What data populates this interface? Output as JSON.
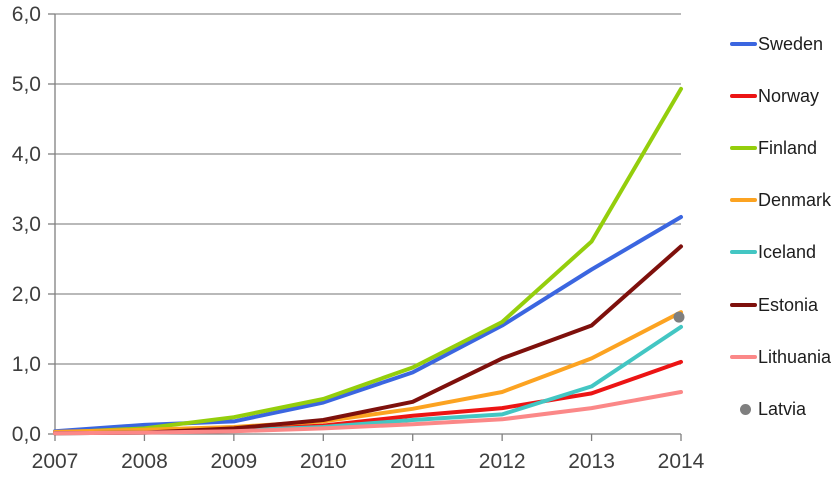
{
  "chart_data": {
    "type": "line",
    "title": "",
    "xlabel": "",
    "ylabel": "",
    "x": [
      2007,
      2008,
      2009,
      2010,
      2011,
      2012,
      2013,
      2014
    ],
    "x_tick_labels": [
      "2007",
      "2008",
      "2009",
      "2010",
      "2011",
      "2012",
      "2013",
      "2014"
    ],
    "y_axis": {
      "min": 0,
      "max": 6,
      "step": 1,
      "tick_labels": [
        "0,0",
        "1,0",
        "2,0",
        "3,0",
        "4,0",
        "5,0",
        "6,0"
      ]
    },
    "decimal_separator": "comma",
    "grid": true,
    "legend_position": "right",
    "series": [
      {
        "name": "Sweden",
        "color": "#3B66E0",
        "values": [
          0.04,
          0.13,
          0.18,
          0.45,
          0.88,
          1.55,
          2.35,
          3.1
        ]
      },
      {
        "name": "Norway",
        "color": "#EC1414",
        "values": [
          0.02,
          0.03,
          0.07,
          0.12,
          0.26,
          0.37,
          0.58,
          1.03
        ]
      },
      {
        "name": "Finland",
        "color": "#94CE0C",
        "values": [
          0.02,
          0.08,
          0.24,
          0.5,
          0.95,
          1.6,
          2.75,
          4.93
        ]
      },
      {
        "name": "Denmark",
        "color": "#FCA321",
        "values": [
          0.03,
          0.06,
          0.1,
          0.18,
          0.36,
          0.6,
          1.08,
          1.74
        ]
      },
      {
        "name": "Iceland",
        "color": "#43C6C3",
        "values": [
          0.01,
          0.02,
          0.05,
          0.1,
          0.2,
          0.28,
          0.68,
          1.53
        ]
      },
      {
        "name": "Estonia",
        "color": "#7E100C",
        "values": [
          0.01,
          0.02,
          0.08,
          0.2,
          0.46,
          1.08,
          1.55,
          2.68
        ]
      },
      {
        "name": "Lithuania",
        "color": "#FB8888",
        "values": [
          0.01,
          0.02,
          0.04,
          0.08,
          0.14,
          0.21,
          0.37,
          0.6
        ]
      }
    ],
    "point_series": [
      {
        "name": "Latvia",
        "color": "#7F7F7F",
        "marker": "circle",
        "x": 2014,
        "value": 1.67
      }
    ]
  },
  "legend": {
    "items": [
      {
        "label": "Sweden",
        "marker": "line",
        "color": "#3B66E0"
      },
      {
        "label": "Norway",
        "marker": "line",
        "color": "#EC1414"
      },
      {
        "label": "Finland",
        "marker": "line",
        "color": "#94CE0C"
      },
      {
        "label": "Denmark",
        "marker": "line",
        "color": "#FCA321"
      },
      {
        "label": "Iceland",
        "marker": "line",
        "color": "#43C6C3"
      },
      {
        "label": "Estonia",
        "marker": "line",
        "color": "#7E100C"
      },
      {
        "label": "Lithuania",
        "marker": "line",
        "color": "#FB8888"
      },
      {
        "label": "Latvia",
        "marker": "circle",
        "color": "#7F7F7F"
      }
    ]
  },
  "styles": {
    "background": "#FFFFFF",
    "gridline_color": "#8F8F8F",
    "axis_color": "#7F7F7F",
    "tick_label_color": "#3E3E3E",
    "legend_text_color": "#1D1D1D"
  }
}
